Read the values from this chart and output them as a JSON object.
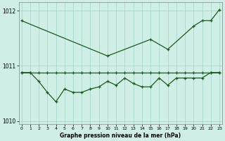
{
  "xlabel": "Graphe pression niveau de la mer (hPa)",
  "bg_color": "#ceeee6",
  "line_color": "#1a5c1a",
  "grid_color": "#9dd4c8",
  "hours": [
    0,
    1,
    2,
    3,
    4,
    5,
    6,
    7,
    8,
    9,
    10,
    11,
    12,
    13,
    14,
    15,
    16,
    17,
    18,
    19,
    20,
    21,
    22,
    23
  ],
  "line_max_x": [
    0,
    10,
    15,
    17,
    20,
    21,
    22,
    23
  ],
  "line_max_y": [
    1011.82,
    1011.18,
    1011.48,
    1011.3,
    1011.72,
    1011.82,
    1011.82,
    1012.02
  ],
  "line_mean": [
    1010.88,
    1010.88,
    1010.88,
    1010.88,
    1010.88,
    1010.88,
    1010.88,
    1010.88,
    1010.88,
    1010.88,
    1010.88,
    1010.88,
    1010.88,
    1010.88,
    1010.88,
    1010.88,
    1010.88,
    1010.88,
    1010.88,
    1010.88,
    1010.88,
    1010.88,
    1010.88,
    1010.88
  ],
  "line_min": [
    1010.88,
    1010.88,
    1010.72,
    1010.52,
    1010.35,
    1010.58,
    1010.52,
    1010.52,
    1010.58,
    1010.62,
    1010.72,
    1010.65,
    1010.78,
    1010.68,
    1010.62,
    1010.62,
    1010.78,
    1010.65,
    1010.78,
    1010.78,
    1010.78,
    1010.78,
    1010.88,
    1010.88
  ],
  "ylim": [
    1009.95,
    1012.15
  ],
  "yticks": [
    1010,
    1011,
    1012
  ],
  "xlim": [
    -0.3,
    23.3
  ]
}
